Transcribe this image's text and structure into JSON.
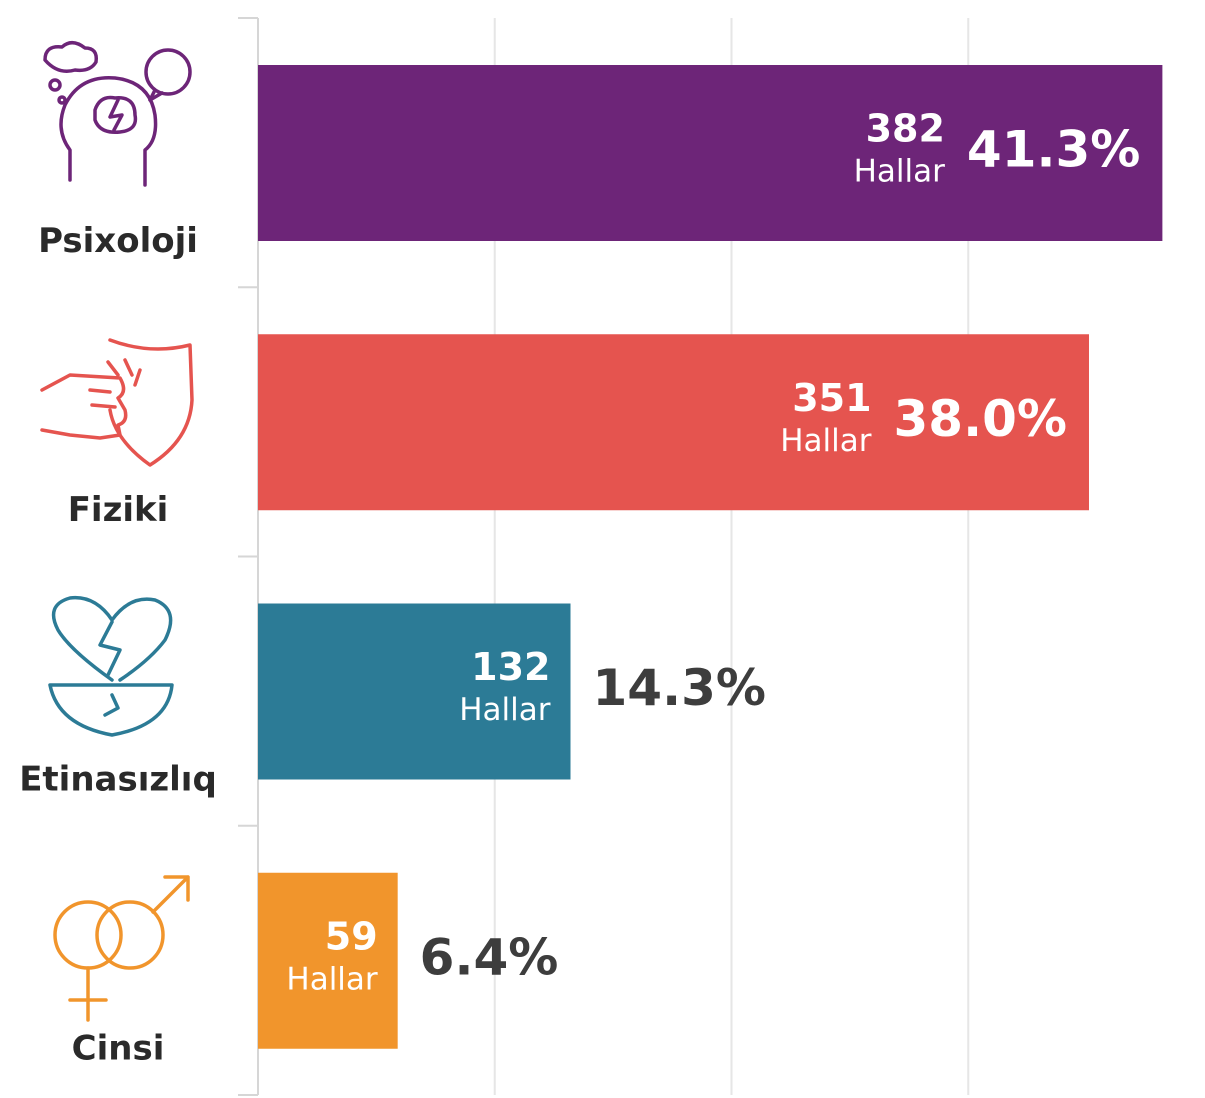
{
  "chart_data": {
    "type": "bar",
    "orientation": "horizontal",
    "categories": [
      "Psixoloji",
      "Fiziki",
      "Etinasızlıq",
      "Cinsi"
    ],
    "values": [
      382,
      351,
      132,
      59
    ],
    "colors": [
      "#6d2578",
      "#e5544f",
      "#2c7b96",
      "#f1952c"
    ],
    "unit_label": "Hallar",
    "percent_labels": [
      "41.3%",
      "38.0%",
      "14.3%",
      "6.4%"
    ],
    "xlim": [
      0,
      400
    ],
    "xticks": [
      0,
      100,
      200,
      300,
      400
    ],
    "grid": true
  }
}
